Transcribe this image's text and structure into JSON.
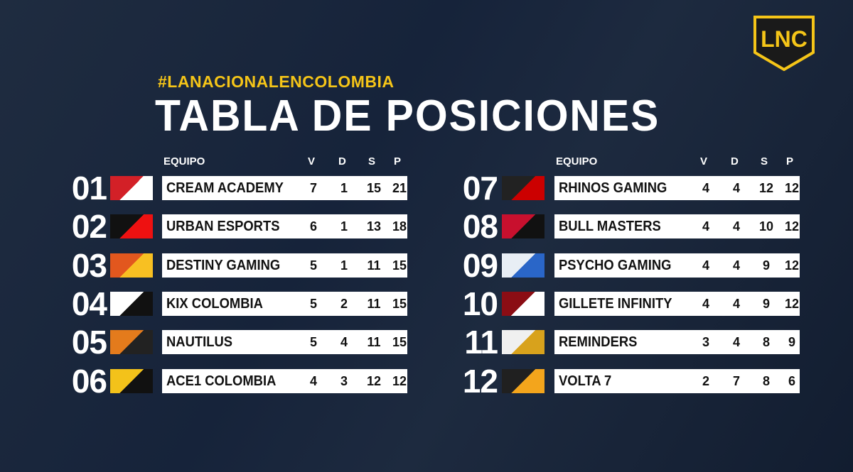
{
  "logo": "LNC",
  "hashtag": "#LANACIONALENCOLOMBIA",
  "title": "TABLA DE POSICIONES",
  "tables": [
    {
      "headers": [
        "EQUIPO",
        "V",
        "D",
        "S",
        "P"
      ],
      "rows": [
        {
          "rank": "01",
          "team": "CREAM ACADEMY",
          "stats": [
            7,
            1,
            15,
            21
          ]
        },
        {
          "rank": "02",
          "team": "URBAN ESPORTS",
          "stats": [
            6,
            1,
            13,
            18
          ]
        },
        {
          "rank": "03",
          "team": "DESTINY GAMING",
          "stats": [
            5,
            1,
            11,
            15
          ]
        },
        {
          "rank": "04",
          "team": "KIX COLOMBIA",
          "stats": [
            5,
            2,
            11,
            15
          ]
        },
        {
          "rank": "05",
          "team": "NAUTILUS",
          "stats": [
            5,
            4,
            11,
            15
          ]
        },
        {
          "rank": "06",
          "team": "ACE1 COLOMBIA",
          "stats": [
            4,
            3,
            12,
            12
          ]
        }
      ]
    },
    {
      "headers": [
        "EQUIPO",
        "V",
        "D",
        "S",
        "P"
      ],
      "rows": [
        {
          "rank": "07",
          "team": "RHINOS GAMING",
          "stats": [
            4,
            4,
            12,
            12
          ]
        },
        {
          "rank": "08",
          "team": "BULL MASTERS",
          "stats": [
            4,
            4,
            10,
            12
          ]
        },
        {
          "rank": "09",
          "team": "PSYCHO GAMING",
          "stats": [
            4,
            4,
            9,
            12
          ]
        },
        {
          "rank": "10",
          "team": "GILLETE INFINITY",
          "stats": [
            4,
            4,
            9,
            12
          ]
        },
        {
          "rank": "11",
          "team": "REMINDERS",
          "stats": [
            3,
            4,
            8,
            9
          ]
        },
        {
          "rank": "12",
          "team": "VOLTA 7",
          "stats": [
            2,
            7,
            8,
            6
          ]
        }
      ]
    }
  ]
}
